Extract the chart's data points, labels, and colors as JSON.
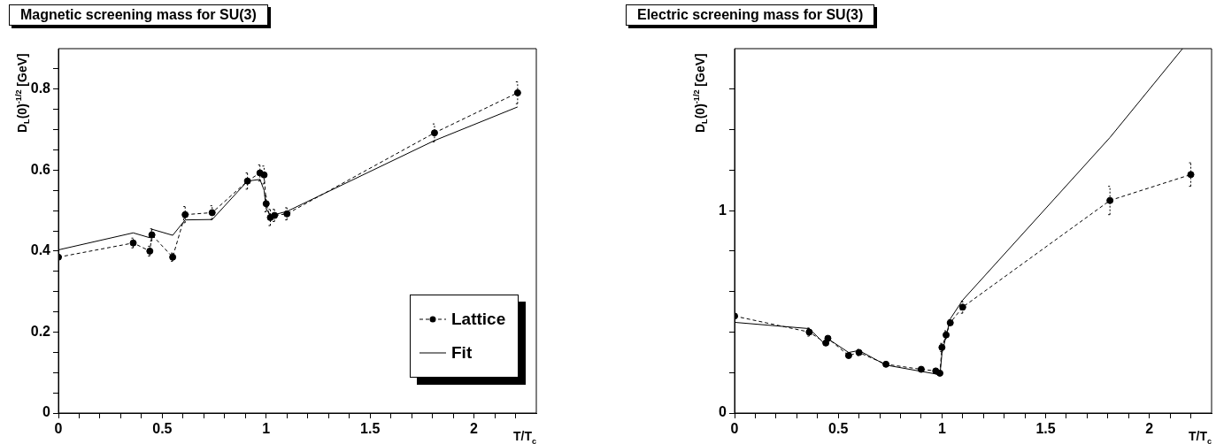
{
  "chart_data": [
    {
      "type": "line",
      "title": "Magnetic screening mass for SU(3)",
      "xlabel": "T/T$_{c}$",
      "ylabel": "D$_{L}$(0)$^{-1/2}$ [GeV]",
      "xlim": [
        0,
        2.3
      ],
      "ylim": [
        0,
        0.9
      ],
      "xticks": [
        0,
        {
          "value": 0.1,
          "label": null
        },
        {
          "value": 0.2,
          "label": null
        },
        {
          "value": 0.3,
          "label": null
        },
        {
          "value": 0.4,
          "label": null
        },
        0.5,
        {
          "value": 0.6,
          "label": null
        },
        {
          "value": 0.7,
          "label": null
        },
        {
          "value": 0.8,
          "label": null
        },
        {
          "value": 0.9,
          "label": null
        },
        1,
        {
          "value": 1.1,
          "label": null
        },
        {
          "value": 1.2,
          "label": null
        },
        {
          "value": 1.3,
          "label": null
        },
        {
          "value": 1.4,
          "label": null
        },
        1.5,
        {
          "value": 1.6,
          "label": null
        },
        {
          "value": 1.7,
          "label": null
        },
        {
          "value": 1.8,
          "label": null
        },
        {
          "value": 1.9,
          "label": null
        },
        2,
        {
          "value": 2.1,
          "label": null
        },
        {
          "value": 2.2,
          "label": null
        }
      ],
      "yticks": [
        0,
        {
          "value": 0.05,
          "label": null
        },
        {
          "value": 0.1,
          "label": null
        },
        {
          "value": 0.15,
          "label": null
        },
        0.2,
        {
          "value": 0.25,
          "label": null
        },
        {
          "value": 0.3,
          "label": null
        },
        {
          "value": 0.35,
          "label": null
        },
        0.4,
        {
          "value": 0.45,
          "label": null
        },
        {
          "value": 0.5,
          "label": null
        },
        {
          "value": 0.55,
          "label": null
        },
        0.6,
        {
          "value": 0.65,
          "label": null
        },
        {
          "value": 0.7,
          "label": null
        },
        {
          "value": 0.75,
          "label": null
        },
        0.8,
        {
          "value": 0.85,
          "label": null
        }
      ],
      "grid": false,
      "legend": "bottom right",
      "series": [
        {
          "name": "Lattice",
          "color": "#000000",
          "marker": "circle",
          "line_style": "dashed",
          "x": [
            0,
            0.36,
            0.44,
            0.45,
            0.55,
            0.61,
            0.74,
            0.91,
            0.97,
            0.99,
            1.0,
            1.02,
            1.04,
            1.1,
            1.81,
            2.21
          ],
          "values": [
            0.385,
            0.42,
            0.4,
            0.44,
            0.385,
            0.49,
            0.495,
            0.573,
            0.593,
            0.588,
            0.517,
            0.483,
            0.488,
            0.492,
            0.692,
            0.791
          ],
          "errors": [
            0.01,
            0.012,
            0.012,
            0.015,
            0.01,
            0.02,
            0.017,
            0.02,
            0.02,
            0.022,
            0.02,
            0.02,
            0.015,
            0.015,
            0.022,
            0.027
          ]
        },
        {
          "name": "Fit",
          "color": "#000000",
          "marker": "none",
          "line_style": "solid",
          "x": [
            0,
            0.36,
            0.44,
            0.45,
            0.55,
            0.61,
            0.74,
            0.91,
            0.97,
            0.99,
            1.0,
            1.02,
            1.04,
            1.1,
            1.81,
            2.21
          ],
          "values": [
            0.403,
            0.445,
            0.433,
            0.454,
            0.439,
            0.477,
            0.478,
            0.573,
            0.577,
            0.55,
            0.505,
            0.487,
            0.49,
            0.498,
            0.673,
            0.756
          ]
        }
      ]
    },
    {
      "type": "line",
      "title": "Electric screening mass for SU(3)",
      "xlabel": "T/T$_{c}$",
      "ylabel": "D$_{L}$(0)$^{-1/2}$ [GeV]",
      "xlim": [
        0,
        2.3
      ],
      "ylim": [
        0,
        1.8
      ],
      "xticks": [
        0,
        {
          "value": 0.1,
          "label": null
        },
        {
          "value": 0.2,
          "label": null
        },
        {
          "value": 0.3,
          "label": null
        },
        {
          "value": 0.4,
          "label": null
        },
        0.5,
        {
          "value": 0.6,
          "label": null
        },
        {
          "value": 0.7,
          "label": null
        },
        {
          "value": 0.8,
          "label": null
        },
        {
          "value": 0.9,
          "label": null
        },
        1,
        {
          "value": 1.1,
          "label": null
        },
        {
          "value": 1.2,
          "label": null
        },
        {
          "value": 1.3,
          "label": null
        },
        {
          "value": 1.4,
          "label": null
        },
        1.5,
        {
          "value": 1.6,
          "label": null
        },
        {
          "value": 1.7,
          "label": null
        },
        {
          "value": 1.8,
          "label": null
        },
        {
          "value": 1.9,
          "label": null
        },
        2,
        {
          "value": 2.1,
          "label": null
        },
        {
          "value": 2.2,
          "label": null
        }
      ],
      "yticks": [
        0,
        {
          "value": 0.2,
          "label": null
        },
        {
          "value": 0.4,
          "label": null
        },
        {
          "value": 0.6,
          "label": null
        },
        {
          "value": 0.8,
          "label": null
        },
        1,
        {
          "value": 1.2,
          "label": null
        },
        {
          "value": 1.4,
          "label": null
        },
        {
          "value": 1.6,
          "label": null
        }
      ],
      "grid": false,
      "legend": false,
      "series": [
        {
          "color": "#000000",
          "marker": "circle",
          "line_style": "dashed",
          "x": [
            0,
            0.36,
            0.44,
            0.45,
            0.55,
            0.6,
            0.73,
            0.9,
            0.97,
            0.99,
            1.0,
            1.02,
            1.04,
            1.1,
            1.81,
            2.2
          ],
          "values": [
            0.479,
            0.4,
            0.346,
            0.369,
            0.284,
            0.299,
            0.241,
            0.216,
            0.208,
            0.197,
            0.324,
            0.386,
            0.446,
            0.523,
            1.05,
            1.178
          ],
          "errors": [
            0.01,
            0.02,
            0.01,
            0.01,
            0.01,
            0.015,
            0.01,
            0.01,
            0.01,
            0.01,
            0.02,
            0.02,
            0.015,
            0.03,
            0.07,
            0.058
          ]
        },
        {
          "color": "#000000",
          "marker": "none",
          "line_style": "solid",
          "x": [
            0,
            0.36,
            0.44,
            0.45,
            0.55,
            0.6,
            0.73,
            0.97,
            0.99,
            1.0,
            1.04,
            1.1,
            1.81,
            2.16
          ],
          "values": [
            0.448,
            0.417,
            0.336,
            0.367,
            0.299,
            0.309,
            0.237,
            0.193,
            0.185,
            0.295,
            0.465,
            0.558,
            1.361,
            1.8
          ]
        }
      ]
    }
  ]
}
